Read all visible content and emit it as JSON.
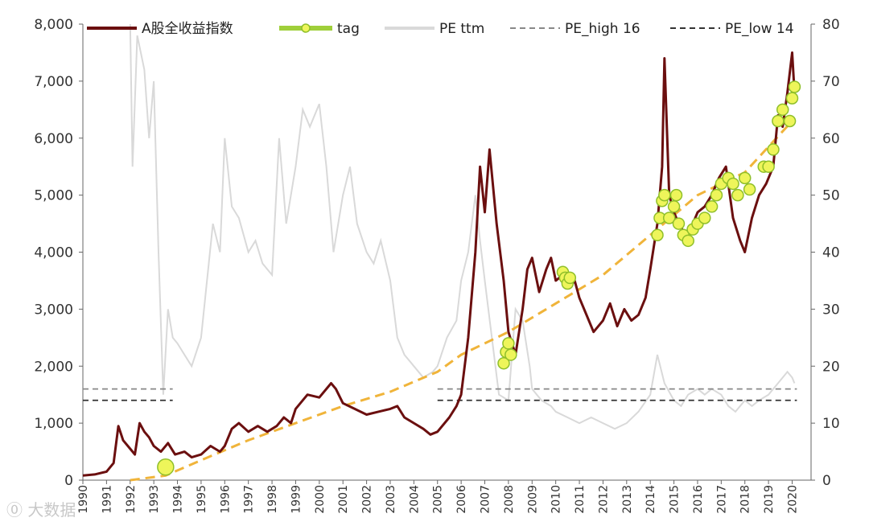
{
  "colors": {
    "index": "#6b0f0f",
    "tag_fill": "#eef55a",
    "tag_edge": "#8fbf2a",
    "pe": "#d9d9d9",
    "pe_high": "#888888",
    "pe_low": "#333333",
    "trend": "#f0b43a"
  },
  "watermark": "大数据",
  "chart_data": {
    "type": "line",
    "title": "",
    "x_range": [
      1990,
      2020.8
    ],
    "y_left": {
      "range": [
        0,
        8000
      ],
      "ticks": [
        "0",
        "1,000",
        "2,000",
        "3,000",
        "4,000",
        "5,000",
        "6,000",
        "7,000",
        "8,000"
      ]
    },
    "y_right": {
      "range": [
        0,
        80
      ],
      "ticks": [
        "0",
        "10",
        "20",
        "30",
        "40",
        "50",
        "60",
        "70",
        "80"
      ]
    },
    "x_ticks": [
      "1990",
      "1991",
      "1992",
      "1993",
      "1994",
      "1995",
      "1996",
      "1997",
      "1998",
      "1999",
      "2000",
      "2001",
      "2002",
      "2003",
      "2004",
      "2005",
      "2006",
      "2007",
      "2008",
      "2009",
      "2010",
      "2011",
      "2012",
      "2013",
      "2014",
      "2015",
      "2016",
      "2017",
      "2018",
      "2019",
      "2020"
    ],
    "legend": [
      "A股全收益指数",
      "tag",
      "PE  ttm",
      "PE_high  16",
      "PE_low  14"
    ],
    "legend_position": "top",
    "series": [
      {
        "name": "A股全收益指数",
        "axis": "left",
        "points": [
          [
            1990.0,
            80
          ],
          [
            1990.5,
            100
          ],
          [
            1991.0,
            150
          ],
          [
            1991.3,
            300
          ],
          [
            1991.5,
            950
          ],
          [
            1991.7,
            700
          ],
          [
            1992.0,
            550
          ],
          [
            1992.2,
            450
          ],
          [
            1992.4,
            1000
          ],
          [
            1992.6,
            850
          ],
          [
            1992.8,
            750
          ],
          [
            1993.0,
            600
          ],
          [
            1993.3,
            500
          ],
          [
            1993.6,
            650
          ],
          [
            1993.9,
            450
          ],
          [
            1994.3,
            500
          ],
          [
            1994.6,
            400
          ],
          [
            1995.0,
            450
          ],
          [
            1995.4,
            600
          ],
          [
            1995.8,
            500
          ],
          [
            1996.0,
            600
          ],
          [
            1996.3,
            900
          ],
          [
            1996.6,
            1000
          ],
          [
            1997.0,
            850
          ],
          [
            1997.4,
            950
          ],
          [
            1997.8,
            850
          ],
          [
            1998.2,
            950
          ],
          [
            1998.5,
            1100
          ],
          [
            1998.8,
            1000
          ],
          [
            1999.0,
            1250
          ],
          [
            1999.5,
            1500
          ],
          [
            2000.0,
            1450
          ],
          [
            2000.5,
            1700
          ],
          [
            2000.7,
            1600
          ],
          [
            2001.0,
            1350
          ],
          [
            2001.5,
            1250
          ],
          [
            2002.0,
            1150
          ],
          [
            2002.5,
            1200
          ],
          [
            2003.0,
            1250
          ],
          [
            2003.3,
            1300
          ],
          [
            2003.6,
            1100
          ],
          [
            2004.0,
            1000
          ],
          [
            2004.4,
            900
          ],
          [
            2004.7,
            800
          ],
          [
            2005.0,
            850
          ],
          [
            2005.5,
            1100
          ],
          [
            2005.8,
            1300
          ],
          [
            2006.0,
            1500
          ],
          [
            2006.3,
            2500
          ],
          [
            2006.6,
            4000
          ],
          [
            2006.8,
            5500
          ],
          [
            2007.0,
            4700
          ],
          [
            2007.2,
            5800
          ],
          [
            2007.5,
            4500
          ],
          [
            2007.8,
            3500
          ],
          [
            2008.0,
            2600
          ],
          [
            2008.3,
            2200
          ],
          [
            2008.6,
            3000
          ],
          [
            2008.8,
            3700
          ],
          [
            2009.0,
            3900
          ],
          [
            2009.3,
            3300
          ],
          [
            2009.6,
            3700
          ],
          [
            2009.8,
            3900
          ],
          [
            2010.0,
            3500
          ],
          [
            2010.3,
            3600
          ],
          [
            2010.6,
            3400
          ],
          [
            2010.8,
            3500
          ],
          [
            2011.0,
            3200
          ],
          [
            2011.3,
            2900
          ],
          [
            2011.6,
            2600
          ],
          [
            2012.0,
            2800
          ],
          [
            2012.3,
            3100
          ],
          [
            2012.6,
            2700
          ],
          [
            2012.9,
            3000
          ],
          [
            2013.2,
            2800
          ],
          [
            2013.5,
            2900
          ],
          [
            2013.8,
            3200
          ],
          [
            2014.0,
            3700
          ],
          [
            2014.3,
            4500
          ],
          [
            2014.5,
            5500
          ],
          [
            2014.6,
            7400
          ],
          [
            2014.8,
            5000
          ],
          [
            2015.0,
            4700
          ],
          [
            2015.2,
            4500
          ],
          [
            2015.5,
            4300
          ],
          [
            2015.8,
            4500
          ],
          [
            2016.0,
            4700
          ],
          [
            2016.3,
            4800
          ],
          [
            2016.6,
            5000
          ],
          [
            2016.9,
            5300
          ],
          [
            2017.2,
            5500
          ],
          [
            2017.5,
            4600
          ],
          [
            2017.8,
            4200
          ],
          [
            2018.0,
            4000
          ],
          [
            2018.3,
            4600
          ],
          [
            2018.6,
            5000
          ],
          [
            2018.9,
            5200
          ],
          [
            2019.2,
            5500
          ],
          [
            2019.4,
            6400
          ],
          [
            2019.6,
            6200
          ],
          [
            2019.8,
            6800
          ],
          [
            2020.0,
            7500
          ],
          [
            2020.1,
            6800
          ]
        ]
      },
      {
        "name": "PE  ttm",
        "axis": "right",
        "points": [
          [
            1992.0,
            80
          ],
          [
            1992.1,
            55
          ],
          [
            1992.3,
            78
          ],
          [
            1992.6,
            72
          ],
          [
            1992.8,
            60
          ],
          [
            1993.0,
            70
          ],
          [
            1993.2,
            40
          ],
          [
            1993.4,
            15
          ],
          [
            1993.6,
            30
          ],
          [
            1993.8,
            25
          ],
          [
            1994.0,
            24
          ],
          [
            1994.3,
            22
          ],
          [
            1994.6,
            20
          ],
          [
            1995.0,
            25
          ],
          [
            1995.5,
            45
          ],
          [
            1995.8,
            40
          ],
          [
            1996.0,
            60
          ],
          [
            1996.3,
            48
          ],
          [
            1996.6,
            46
          ],
          [
            1997.0,
            40
          ],
          [
            1997.3,
            42
          ],
          [
            1997.6,
            38
          ],
          [
            1998.0,
            36
          ],
          [
            1998.3,
            60
          ],
          [
            1998.6,
            45
          ],
          [
            1999.0,
            55
          ],
          [
            1999.3,
            65
          ],
          [
            1999.6,
            62
          ],
          [
            2000.0,
            66
          ],
          [
            2000.3,
            55
          ],
          [
            2000.6,
            40
          ],
          [
            2001.0,
            50
          ],
          [
            2001.3,
            55
          ],
          [
            2001.6,
            45
          ],
          [
            2002.0,
            40
          ],
          [
            2002.3,
            38
          ],
          [
            2002.6,
            42
          ],
          [
            2003.0,
            35
          ],
          [
            2003.3,
            25
          ],
          [
            2003.6,
            22
          ],
          [
            2004.0,
            20
          ],
          [
            2004.4,
            18
          ],
          [
            2004.8,
            19
          ],
          [
            2005.0,
            20
          ],
          [
            2005.4,
            25
          ],
          [
            2005.8,
            28
          ],
          [
            2006.0,
            35
          ],
          [
            2006.3,
            40
          ],
          [
            2006.6,
            50
          ],
          [
            2006.8,
            42
          ],
          [
            2007.0,
            35
          ],
          [
            2007.3,
            25
          ],
          [
            2007.6,
            15
          ],
          [
            2008.0,
            14
          ],
          [
            2008.3,
            30
          ],
          [
            2008.6,
            28
          ],
          [
            2008.9,
            20
          ],
          [
            2009.0,
            16
          ],
          [
            2009.4,
            14
          ],
          [
            2009.8,
            13
          ],
          [
            2010.0,
            12
          ],
          [
            2010.5,
            11
          ],
          [
            2011.0,
            10
          ],
          [
            2011.5,
            11
          ],
          [
            2012.0,
            10
          ],
          [
            2012.5,
            9
          ],
          [
            2013.0,
            10
          ],
          [
            2013.5,
            12
          ],
          [
            2014.0,
            15
          ],
          [
            2014.3,
            22
          ],
          [
            2014.6,
            17
          ],
          [
            2015.0,
            14
          ],
          [
            2015.3,
            13
          ],
          [
            2015.6,
            15
          ],
          [
            2016.0,
            16
          ],
          [
            2016.3,
            15
          ],
          [
            2016.6,
            16
          ],
          [
            2017.0,
            15
          ],
          [
            2017.3,
            13
          ],
          [
            2017.6,
            12
          ],
          [
            2018.0,
            14
          ],
          [
            2018.3,
            13
          ],
          [
            2018.6,
            14
          ],
          [
            2019.0,
            15
          ],
          [
            2019.4,
            17
          ],
          [
            2019.8,
            19
          ],
          [
            2020.0,
            18
          ],
          [
            2020.1,
            17
          ]
        ]
      },
      {
        "name": "PE_high  16",
        "axis": "right",
        "value": 16,
        "segments": [
          [
            1990.0,
            1993.8
          ],
          [
            2005.0,
            2020.2
          ]
        ]
      },
      {
        "name": "PE_low  14",
        "axis": "right",
        "value": 14,
        "segments": [
          [
            1990.0,
            1993.8
          ],
          [
            2005.0,
            2020.2
          ]
        ]
      },
      {
        "name": "tag",
        "axis": "left",
        "points": [
          [
            1993.5,
            230
          ],
          [
            2007.8,
            2050
          ],
          [
            2007.9,
            2250
          ],
          [
            2008.0,
            2400
          ],
          [
            2008.1,
            2200
          ],
          [
            2010.3,
            3650
          ],
          [
            2010.4,
            3550
          ],
          [
            2010.5,
            3450
          ],
          [
            2010.6,
            3550
          ],
          [
            2014.3,
            4300
          ],
          [
            2014.4,
            4600
          ],
          [
            2014.5,
            4900
          ],
          [
            2014.6,
            5000
          ],
          [
            2014.8,
            4600
          ],
          [
            2015.0,
            4800
          ],
          [
            2015.1,
            5000
          ],
          [
            2015.2,
            4500
          ],
          [
            2015.4,
            4300
          ],
          [
            2015.6,
            4200
          ],
          [
            2015.8,
            4400
          ],
          [
            2016.0,
            4500
          ],
          [
            2016.3,
            4600
          ],
          [
            2016.6,
            4800
          ],
          [
            2016.8,
            5000
          ],
          [
            2017.0,
            5200
          ],
          [
            2017.3,
            5300
          ],
          [
            2017.5,
            5200
          ],
          [
            2017.7,
            5000
          ],
          [
            2018.0,
            5300
          ],
          [
            2018.2,
            5100
          ],
          [
            2018.8,
            5500
          ],
          [
            2019.0,
            5500
          ],
          [
            2019.2,
            5800
          ],
          [
            2019.4,
            6300
          ],
          [
            2019.6,
            6500
          ],
          [
            2019.9,
            6300
          ],
          [
            2020.0,
            6700
          ],
          [
            2020.1,
            6900
          ]
        ]
      }
    ],
    "trend": {
      "name": "",
      "color": "#f0b43a",
      "type": "dashed-curve",
      "points": [
        [
          1992.0,
          0
        ],
        [
          1993.5,
          80
        ],
        [
          1995.0,
          350
        ],
        [
          1997.0,
          700
        ],
        [
          1999.0,
          1000
        ],
        [
          2001.0,
          1300
        ],
        [
          2003.0,
          1550
        ],
        [
          2005.0,
          1900
        ],
        [
          2006.0,
          2200
        ],
        [
          2008.0,
          2600
        ],
        [
          2010.0,
          3100
        ],
        [
          2012.0,
          3600
        ],
        [
          2014.0,
          4300
        ],
        [
          2016.0,
          5000
        ],
        [
          2018.0,
          5400
        ],
        [
          2020.0,
          6300
        ]
      ]
    }
  }
}
